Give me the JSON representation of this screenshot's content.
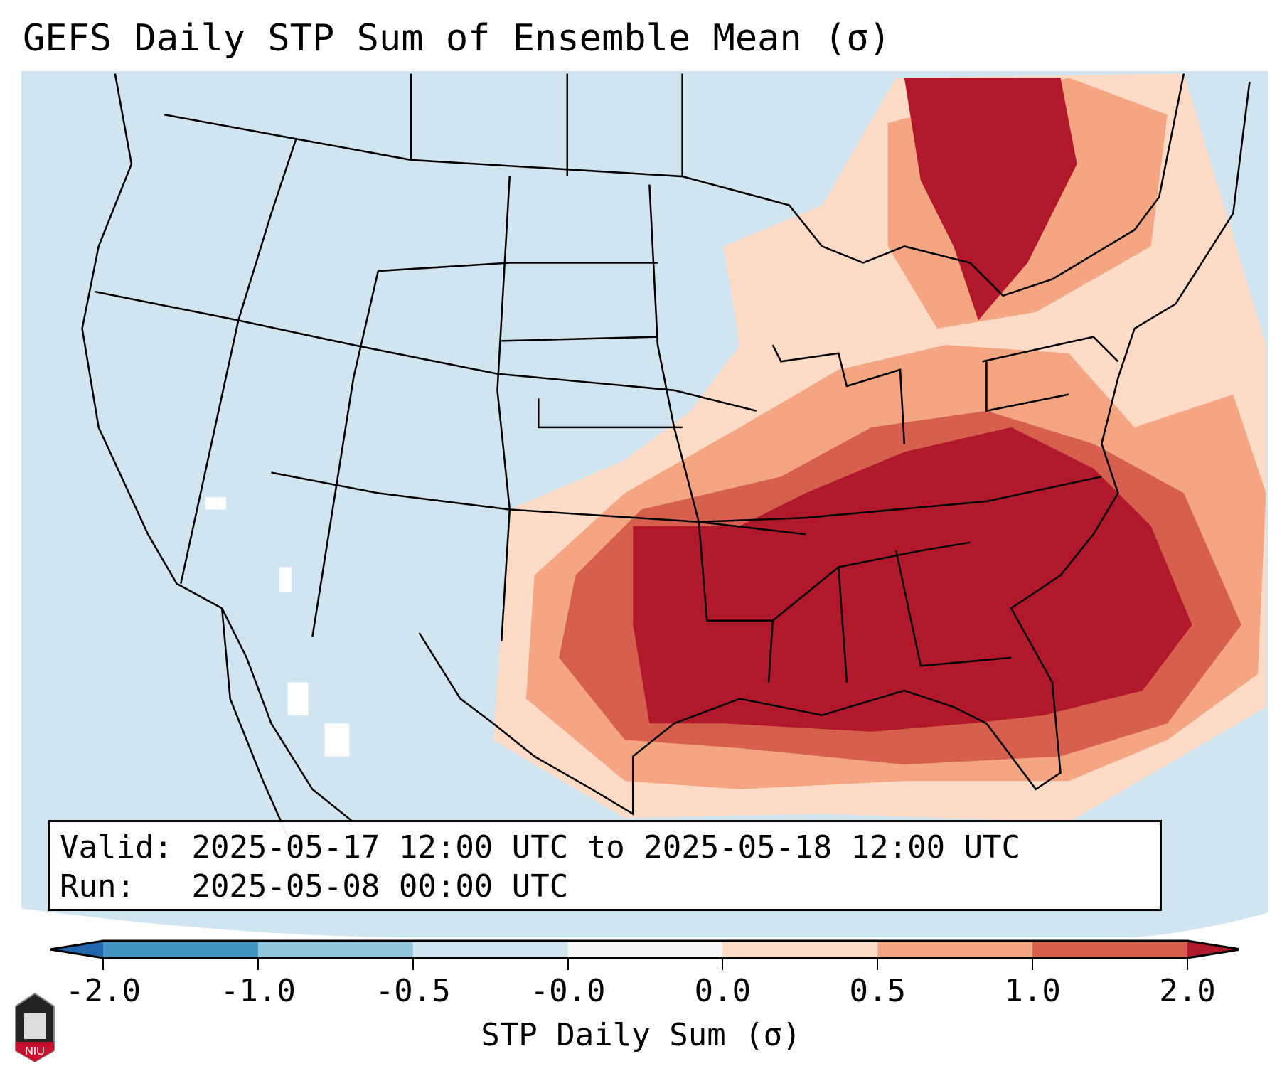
{
  "title": "GEFS Daily STP Sum of Ensemble Mean (σ)",
  "legend": {
    "valid_label": "Valid:",
    "valid_value": "2025-05-17 12:00 UTC to 2025-05-18 12:00 UTC",
    "run_label": "Run:",
    "run_value": "2025-05-08 00:00 UTC"
  },
  "colorbar": {
    "label": "STP Daily Sum (σ)",
    "ticks": [
      "-2.0",
      "-1.0",
      "-0.5",
      "-0.0",
      "0.0",
      "0.5",
      "1.0",
      "2.0"
    ],
    "colors": [
      "#2166ac",
      "#4393c3",
      "#92c5de",
      "#d1e5f0",
      "#f7f7f7",
      "#fddbc7",
      "#f4a582",
      "#d6604d",
      "#b2182b"
    ]
  },
  "logo_text": "NIU"
}
